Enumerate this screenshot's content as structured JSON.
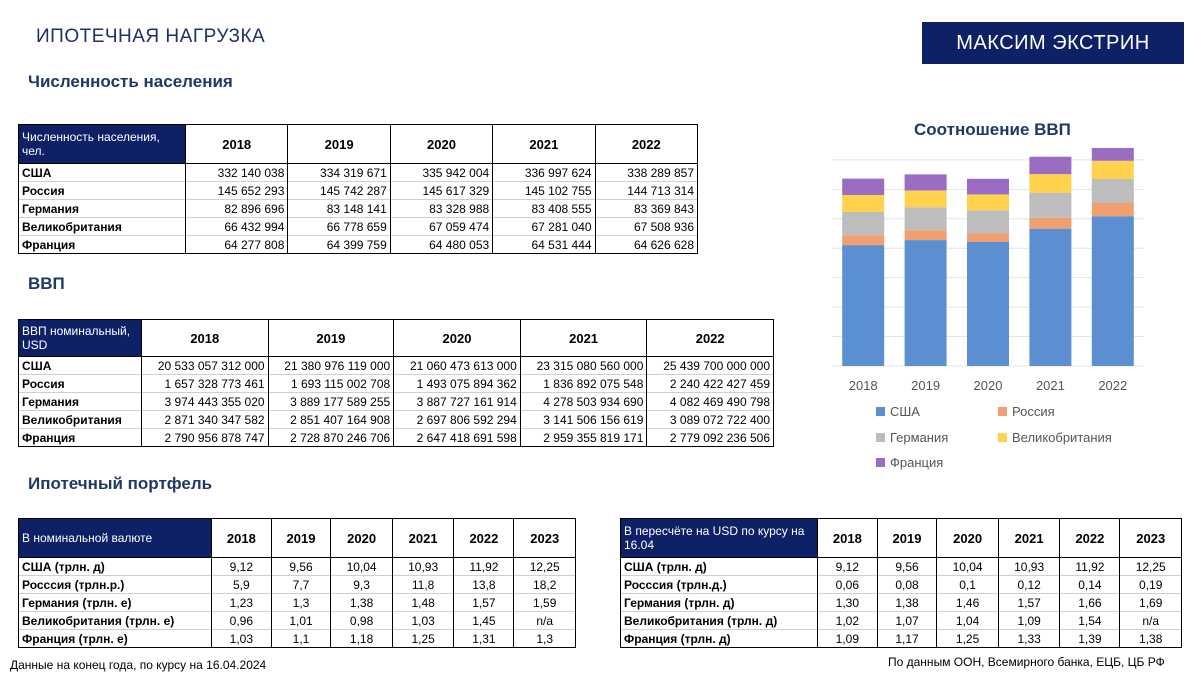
{
  "header": {
    "title": "ИПОТЕЧНАЯ НАГРУЗКА",
    "author": "МАКСИМ ЭКСТРИН"
  },
  "population": {
    "heading": "Численность населения",
    "corner": "Численность населения, чел.",
    "years": [
      "2018",
      "2019",
      "2020",
      "2021",
      "2022"
    ],
    "rows": [
      {
        "label": "США",
        "values": [
          "332 140 038",
          "334 319 671",
          "335 942 004",
          "336 997 624",
          "338 289 857"
        ]
      },
      {
        "label": "Россия",
        "values": [
          "145 652 293",
          "145 742 287",
          "145 617 329",
          "145 102 755",
          "144 713 314"
        ]
      },
      {
        "label": "Германия",
        "values": [
          "82 896 696",
          "83 148 141",
          "83 328 988",
          "83 408 555",
          "83 369 843"
        ]
      },
      {
        "label": "Великобритания",
        "values": [
          "66 432 994",
          "66 778 659",
          "67 059 474",
          "67 281 040",
          "67 508 936"
        ]
      },
      {
        "label": "Франция",
        "values": [
          "64 277 808",
          "64 399 759",
          "64 480 053",
          "64 531 444",
          "64 626 628"
        ]
      }
    ]
  },
  "gdp": {
    "heading": "ВВП",
    "corner": "ВВП номинальный, USD",
    "years": [
      "2018",
      "2019",
      "2020",
      "2021",
      "2022"
    ],
    "rows": [
      {
        "label": "США",
        "values": [
          "20 533 057 312 000",
          "21 380 976 119 000",
          "21 060 473 613 000",
          "23 315 080 560 000",
          "25 439 700 000 000"
        ]
      },
      {
        "label": "Россия",
        "values": [
          "1 657 328 773 461",
          "1 693 115 002 708",
          "1 493 075 894 362",
          "1 836 892 075 548",
          "2 240 422 427 459"
        ]
      },
      {
        "label": "Германия",
        "values": [
          "3 974 443 355 020",
          "3 889 177 589 255",
          "3 887 727 161 914",
          "4 278 503 934 690",
          "4 082 469 490 798"
        ]
      },
      {
        "label": "Великобритания",
        "values": [
          "2 871 340 347 582",
          "2 851 407 164 908",
          "2 697 806 592 294",
          "3 141 506 156 619",
          "3 089 072 722 400"
        ]
      },
      {
        "label": "Франция",
        "values": [
          "2 790 956 878 747",
          "2 728 870 246 706",
          "2 647 418 691 598",
          "2 959 355 819 171",
          "2 779 092 236 506"
        ]
      }
    ]
  },
  "mortgage": {
    "heading": "Ипотечный портфель",
    "nominal": {
      "corner": "В номинальной валюте",
      "years": [
        "2018",
        "2019",
        "2020",
        "2021",
        "2022",
        "2023"
      ],
      "rows": [
        {
          "label": "США (трлн. д)",
          "values": [
            "9,12",
            "9,56",
            "10,04",
            "10,93",
            "11,92",
            "12,25"
          ]
        },
        {
          "label": "Росссия (трлн.р.)",
          "values": [
            "5,9",
            "7,7",
            "9,3",
            "11,8",
            "13,8",
            "18,2"
          ]
        },
        {
          "label": "Германия (трлн. е)",
          "values": [
            "1,23",
            "1,3",
            "1,38",
            "1,48",
            "1,57",
            "1,59"
          ]
        },
        {
          "label": "Великобритания (трлн. е)",
          "values": [
            "0,96",
            "1,01",
            "0,98",
            "1,03",
            "1,45",
            "n/a"
          ]
        },
        {
          "label": "Франция (трлн. е)",
          "values": [
            "1,03",
            "1,1",
            "1,18",
            "1,25",
            "1,31",
            "1,3"
          ]
        }
      ]
    },
    "usd": {
      "corner": "В пересчёте на USD по курсу на 16.04",
      "years": [
        "2018",
        "2019",
        "2020",
        "2021",
        "2022",
        "2023"
      ],
      "rows": [
        {
          "label": "США (трлн. д)",
          "values": [
            "9,12",
            "9,56",
            "10,04",
            "10,93",
            "11,92",
            "12,25"
          ]
        },
        {
          "label": "Росссия (трлн.д.)",
          "values": [
            "0,06",
            "0,08",
            "0,1",
            "0,12",
            "0,14",
            "0,19"
          ]
        },
        {
          "label": "Германия (трлн. д)",
          "values": [
            "1,30",
            "1,38",
            "1,46",
            "1,57",
            "1,66",
            "1,69"
          ]
        },
        {
          "label": "Великобритания (трлн. д)",
          "values": [
            "1,02",
            "1,07",
            "1,04",
            "1,09",
            "1,54",
            "n/a"
          ]
        },
        {
          "label": "Франция (трлн. д)",
          "values": [
            "1,09",
            "1,17",
            "1,25",
            "1,33",
            "1,39",
            "1,38"
          ]
        }
      ]
    }
  },
  "chart_data": {
    "type": "bar",
    "stacked": true,
    "title": "Соотношение ВВП",
    "categories": [
      "2018",
      "2019",
      "2020",
      "2021",
      "2022"
    ],
    "series": [
      {
        "name": "США",
        "color": "#5b8fd1",
        "values": [
          20.53,
          21.38,
          21.06,
          23.32,
          25.44
        ]
      },
      {
        "name": "Россия",
        "color": "#f0a070",
        "values": [
          1.66,
          1.69,
          1.49,
          1.84,
          2.24
        ]
      },
      {
        "name": "Германия",
        "color": "#bdbdbd",
        "values": [
          3.97,
          3.89,
          3.89,
          4.28,
          4.08
        ]
      },
      {
        "name": "Великобритания",
        "color": "#ffd24d",
        "values": [
          2.87,
          2.85,
          2.7,
          3.14,
          3.09
        ]
      },
      {
        "name": "Франция",
        "color": "#9a6cc2",
        "values": [
          2.79,
          2.73,
          2.65,
          2.96,
          2.78
        ]
      }
    ],
    "grid": true,
    "legend_position": "bottom"
  },
  "footer": {
    "left": "Данные на конец года, по курсу на 16.04.2024",
    "right": "По данным ООН, Всемирного банка, ЕЦБ, ЦБ РФ"
  }
}
